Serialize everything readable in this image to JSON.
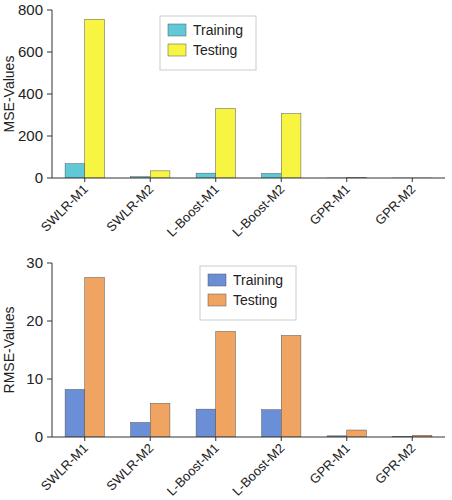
{
  "chart_data": [
    {
      "type": "bar",
      "y_label": "MSE-Values",
      "categories": [
        "SWLR-M1",
        "SWLR-M2",
        "L-Boost-M1",
        "L-Boost-M2",
        "GPR-M1",
        "GPR-M2"
      ],
      "series": [
        {
          "name": "Training",
          "color": "#5fc9d8",
          "values": [
            68,
            6,
            23,
            22,
            0.04,
            0.01
          ]
        },
        {
          "name": "Testing",
          "color": "#f7f542",
          "values": [
            756,
            34,
            331,
            306,
            1.4,
            0.09
          ]
        }
      ],
      "ylim": [
        0,
        800
      ],
      "yticks": [
        0,
        200,
        400,
        600,
        800
      ],
      "legend": "upper center"
    },
    {
      "type": "bar",
      "y_label": "RMSE-Values",
      "categories": [
        "SWLR-M1",
        "SWLR-M2",
        "L-Boost-M1",
        "L-Boost-M2",
        "GPR-M1",
        "GPR-M2"
      ],
      "series": [
        {
          "name": "Training",
          "color": "#6a8fd6",
          "values": [
            8.2,
            2.5,
            4.8,
            4.7,
            0.2,
            0.1
          ]
        },
        {
          "name": "Testing",
          "color": "#f0a462",
          "values": [
            27.5,
            5.8,
            18.2,
            17.5,
            1.2,
            0.3
          ]
        }
      ],
      "ylim": [
        0,
        30
      ],
      "yticks": [
        0,
        10,
        20,
        30
      ],
      "legend": "upper center"
    }
  ]
}
